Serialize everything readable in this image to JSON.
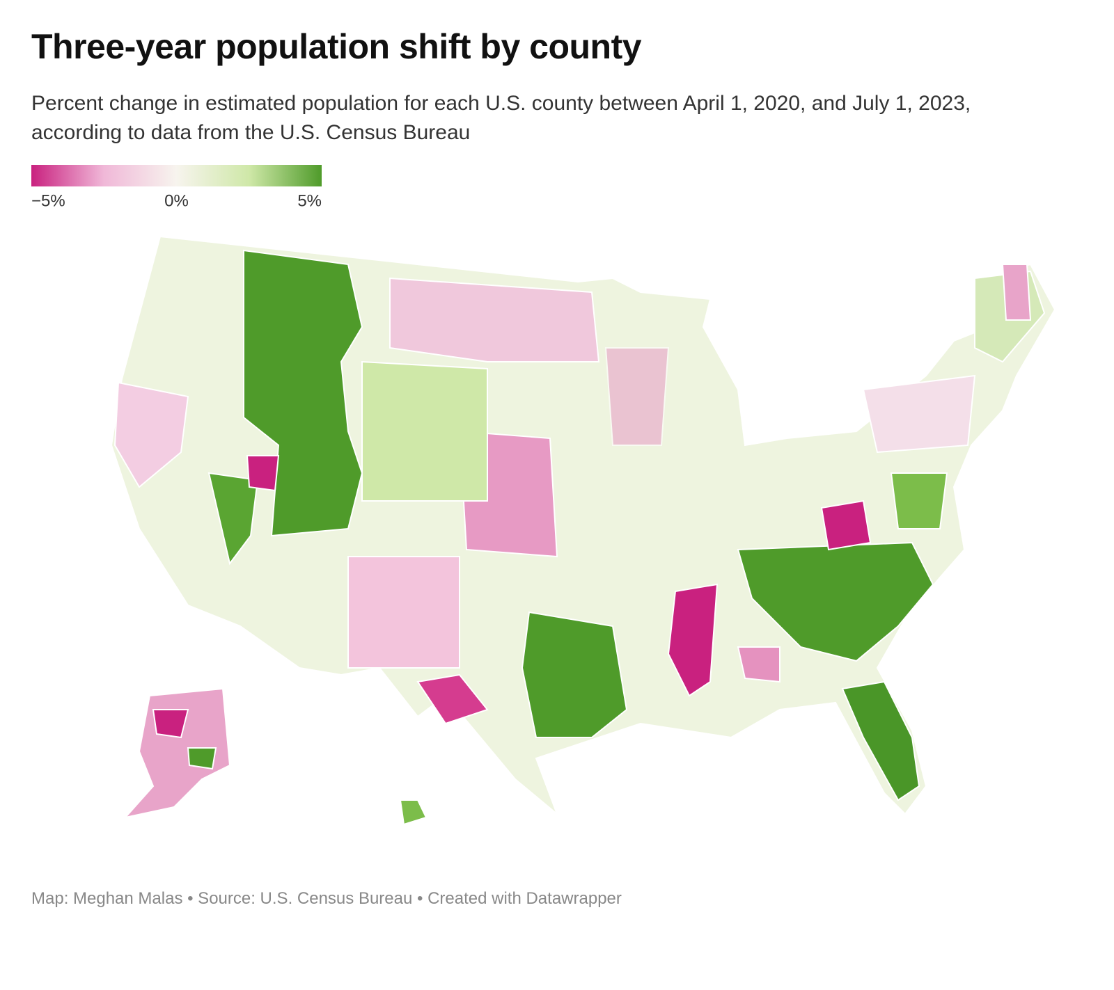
{
  "header": {
    "title": "Three-year population shift by county",
    "subtitle": "Percent change in estimated population for each U.S. county between April 1, 2020, and July 1, 2023, according to data from the U.S. Census Bureau"
  },
  "legend": {
    "range": [
      -5,
      5
    ],
    "colors": [
      "#c9217f",
      "#f0b8d8",
      "#f7f4ee",
      "#cfe8a8",
      "#4f9b2a"
    ],
    "ticks": [
      {
        "value": -5,
        "label": "−5%"
      },
      {
        "value": 0,
        "label": "0%"
      },
      {
        "value": 5,
        "label": "5%"
      }
    ]
  },
  "footer": "Map: Meghan Malas • Source: U.S. Census Bureau • Created with Datawrapper"
}
